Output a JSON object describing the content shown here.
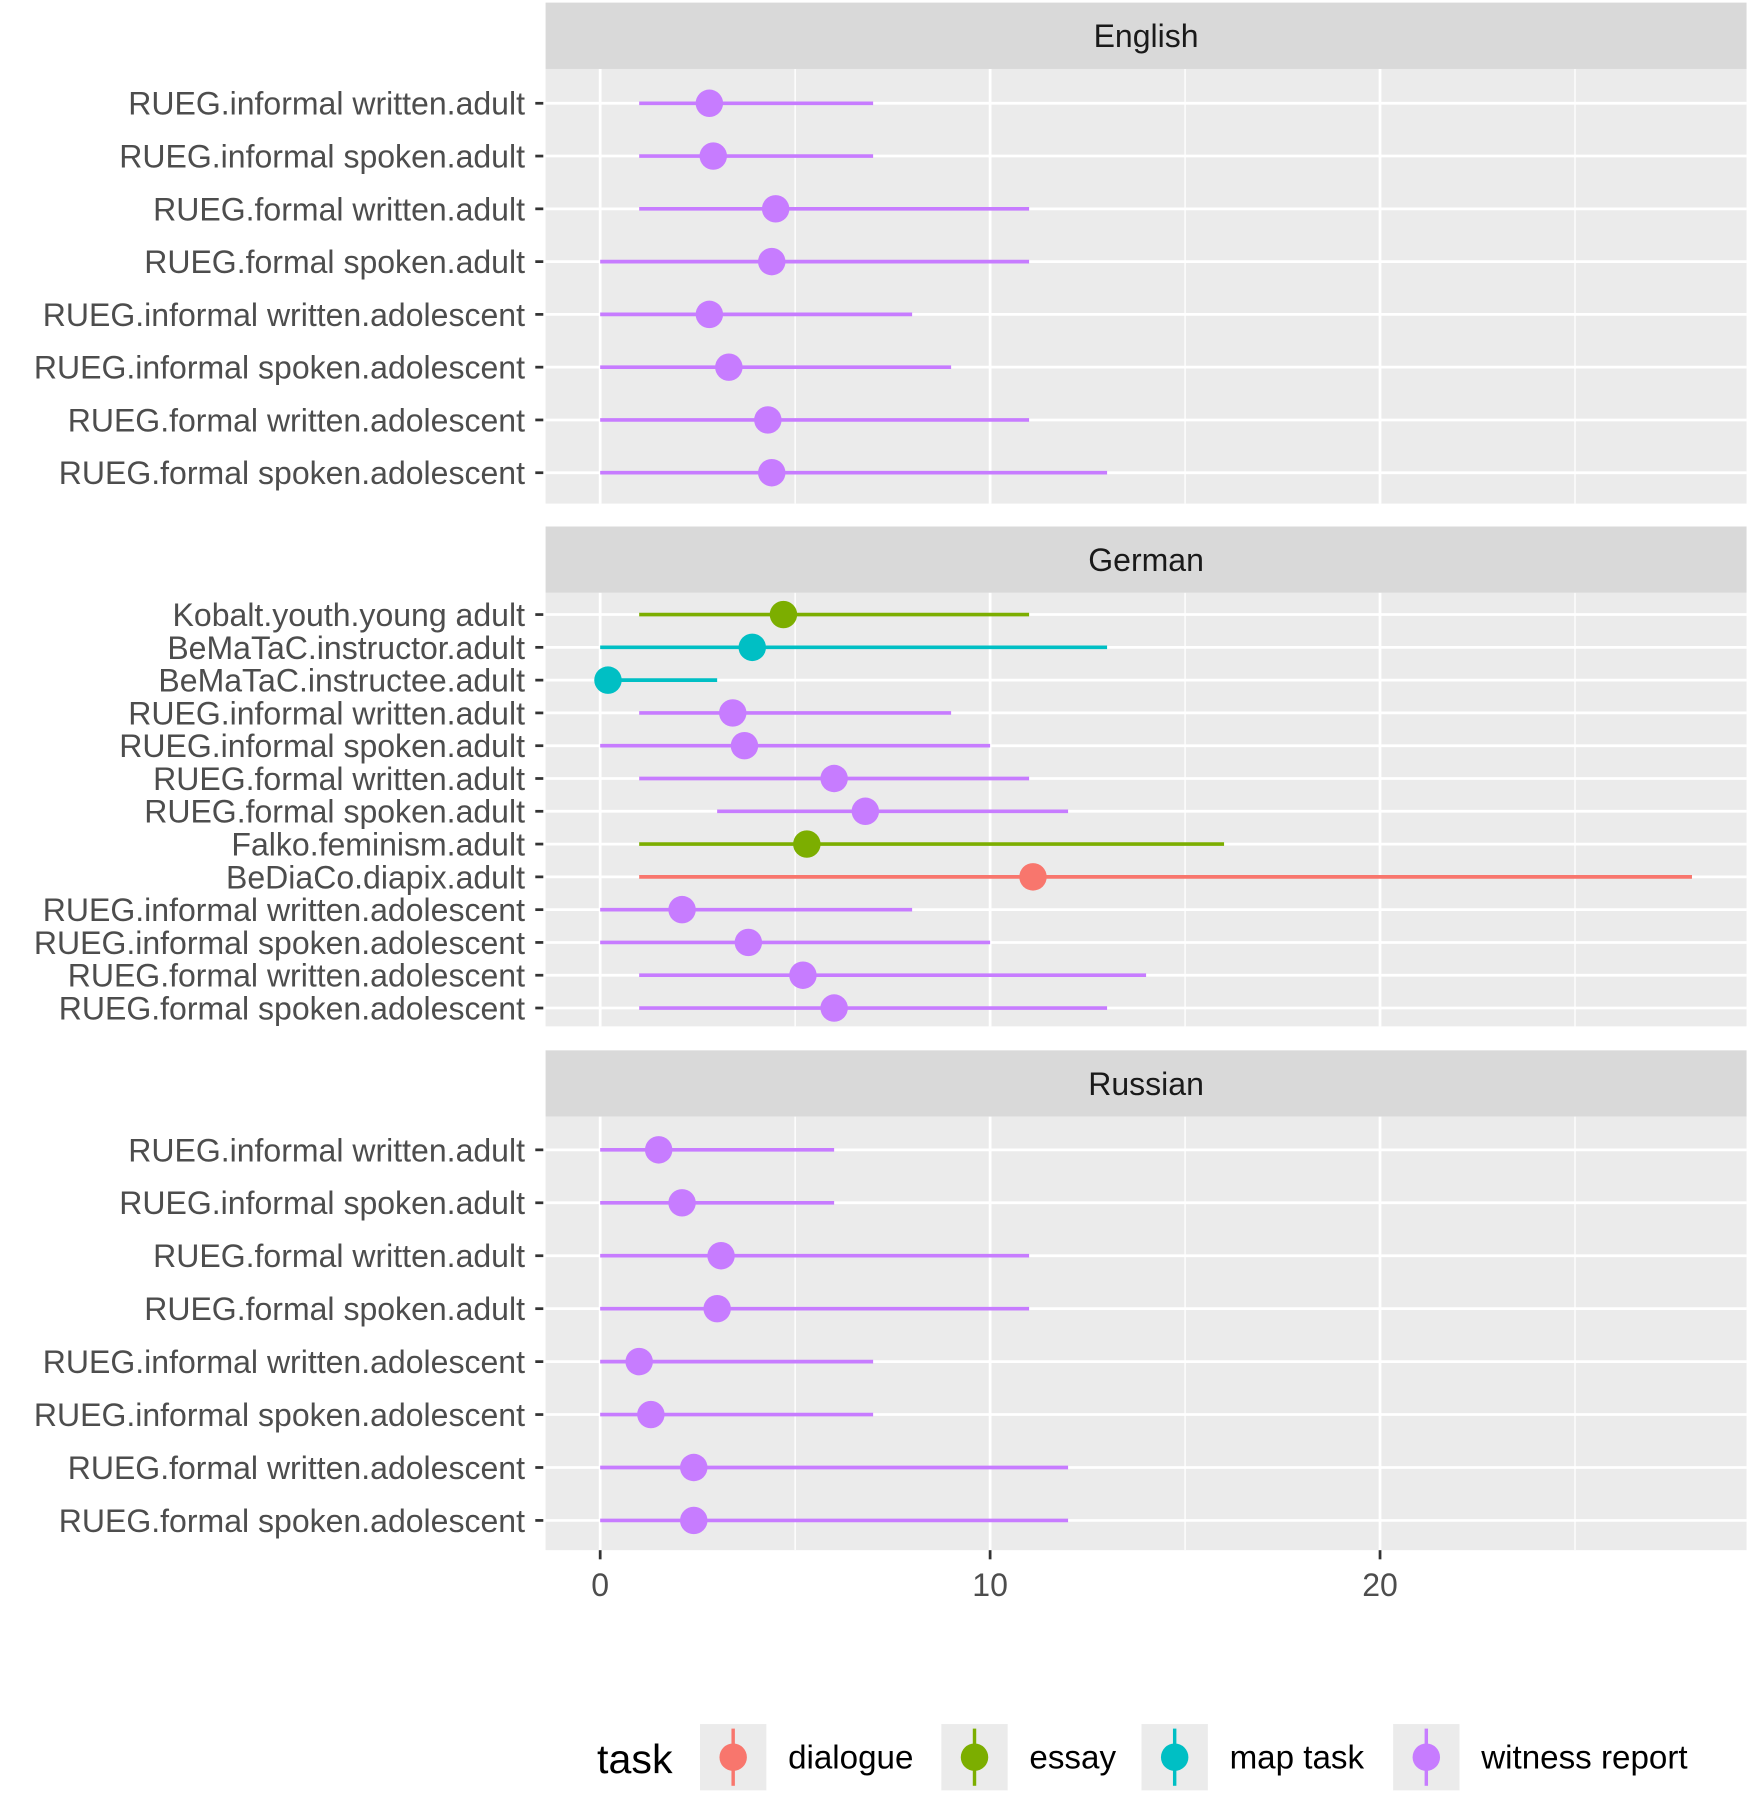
{
  "chart_data": {
    "type": "pointrange",
    "xlabel": "",
    "ylabel": "",
    "xlim": [
      -1.4,
      29.4
    ],
    "x_ticks": [
      0,
      10,
      20
    ],
    "grid": true,
    "legend": {
      "title": "task",
      "position": "bottom",
      "entries": [
        {
          "label": "dialogue",
          "color": "#F8766D"
        },
        {
          "label": "essay",
          "color": "#7CAE00"
        },
        {
          "label": "map task",
          "color": "#00BFC4"
        },
        {
          "label": "witness report",
          "color": "#C77CFF"
        }
      ]
    },
    "panels": [
      {
        "title": "English",
        "rows": [
          {
            "label": "RUEG.informal written.adult",
            "task": "witness report",
            "low": 1,
            "value": 2.8,
            "high": 7
          },
          {
            "label": "RUEG.informal spoken.adult",
            "task": "witness report",
            "low": 1,
            "value": 2.9,
            "high": 7
          },
          {
            "label": "RUEG.formal written.adult",
            "task": "witness report",
            "low": 1,
            "value": 4.5,
            "high": 11
          },
          {
            "label": "RUEG.formal spoken.adult",
            "task": "witness report",
            "low": 0,
            "value": 4.4,
            "high": 11
          },
          {
            "label": "RUEG.informal written.adolescent",
            "task": "witness report",
            "low": 0,
            "value": 2.8,
            "high": 8
          },
          {
            "label": "RUEG.informal spoken.adolescent",
            "task": "witness report",
            "low": 0,
            "value": 3.3,
            "high": 9
          },
          {
            "label": "RUEG.formal written.adolescent",
            "task": "witness report",
            "low": 0,
            "value": 4.3,
            "high": 11
          },
          {
            "label": "RUEG.formal spoken.adolescent",
            "task": "witness report",
            "low": 0,
            "value": 4.4,
            "high": 13
          }
        ]
      },
      {
        "title": "German",
        "rows": [
          {
            "label": "Kobalt.youth.young adult",
            "task": "essay",
            "low": 1,
            "value": 4.7,
            "high": 11
          },
          {
            "label": "BeMaTaC.instructor.adult",
            "task": "map task",
            "low": 0,
            "value": 3.9,
            "high": 13
          },
          {
            "label": "BeMaTaC.instructee.adult",
            "task": "map task",
            "low": 0,
            "value": 0.2,
            "high": 3
          },
          {
            "label": "RUEG.informal written.adult",
            "task": "witness report",
            "low": 1,
            "value": 3.4,
            "high": 9
          },
          {
            "label": "RUEG.informal spoken.adult",
            "task": "witness report",
            "low": 0,
            "value": 3.7,
            "high": 10
          },
          {
            "label": "RUEG.formal written.adult",
            "task": "witness report",
            "low": 1,
            "value": 6.0,
            "high": 11
          },
          {
            "label": "RUEG.formal spoken.adult",
            "task": "witness report",
            "low": 3,
            "value": 6.8,
            "high": 12
          },
          {
            "label": "Falko.feminism.adult",
            "task": "essay",
            "low": 1,
            "value": 5.3,
            "high": 16
          },
          {
            "label": "BeDiaCo.diapix.adult",
            "task": "dialogue",
            "low": 1,
            "value": 11.1,
            "high": 28
          },
          {
            "label": "RUEG.informal written.adolescent",
            "task": "witness report",
            "low": 0,
            "value": 2.1,
            "high": 8
          },
          {
            "label": "RUEG.informal spoken.adolescent",
            "task": "witness report",
            "low": 0,
            "value": 3.8,
            "high": 10
          },
          {
            "label": "RUEG.formal written.adolescent",
            "task": "witness report",
            "low": 1,
            "value": 5.2,
            "high": 14
          },
          {
            "label": "RUEG.formal spoken.adolescent",
            "task": "witness report",
            "low": 1,
            "value": 6.0,
            "high": 13
          }
        ]
      },
      {
        "title": "Russian",
        "rows": [
          {
            "label": "RUEG.informal written.adult",
            "task": "witness report",
            "low": 0,
            "value": 1.5,
            "high": 6
          },
          {
            "label": "RUEG.informal spoken.adult",
            "task": "witness report",
            "low": 0,
            "value": 2.1,
            "high": 6
          },
          {
            "label": "RUEG.formal written.adult",
            "task": "witness report",
            "low": 0,
            "value": 3.1,
            "high": 11
          },
          {
            "label": "RUEG.formal spoken.adult",
            "task": "witness report",
            "low": 0,
            "value": 3.0,
            "high": 11
          },
          {
            "label": "RUEG.informal written.adolescent",
            "task": "witness report",
            "low": 0,
            "value": 1.0,
            "high": 7
          },
          {
            "label": "RUEG.informal spoken.adolescent",
            "task": "witness report",
            "low": 0,
            "value": 1.3,
            "high": 7
          },
          {
            "label": "RUEG.formal written.adolescent",
            "task": "witness report",
            "low": 0,
            "value": 2.4,
            "high": 12
          },
          {
            "label": "RUEG.formal spoken.adolescent",
            "task": "witness report",
            "low": 0,
            "value": 2.4,
            "high": 12
          }
        ]
      }
    ]
  }
}
